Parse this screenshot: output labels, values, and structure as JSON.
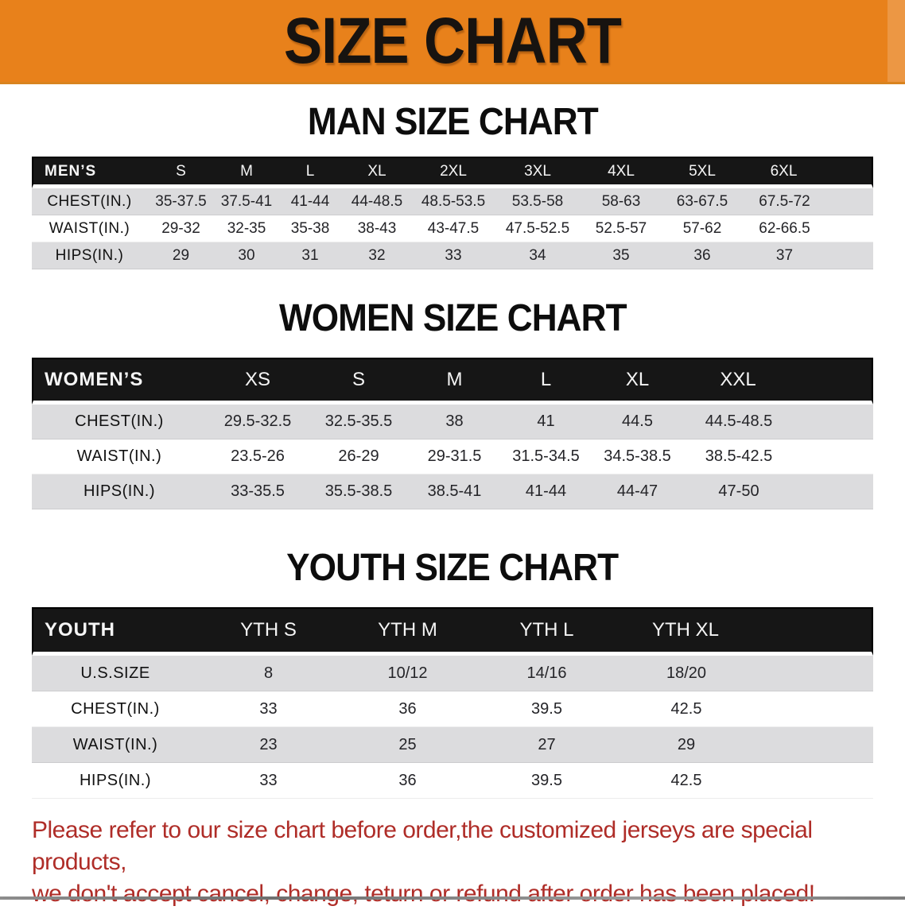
{
  "banner": {
    "title": "SIZE CHART",
    "background_color": "#E8811B"
  },
  "sections": {
    "men": {
      "heading": "MAN SIZE CHART"
    },
    "women": {
      "heading": "WOMEN SIZE CHART"
    },
    "youth": {
      "heading": "YOUTH SIZE CHART"
    }
  },
  "tables": {
    "men": {
      "columns": [
        "MEN’S",
        "S",
        "M",
        "L",
        "XL",
        "2XL",
        "3XL",
        "4XL",
        "5XL",
        "6XL"
      ],
      "rows": [
        {
          "label": "CHEST(IN.)",
          "values": [
            "35-37.5",
            "37.5-41",
            "41-44",
            "44-48.5",
            "48.5-53.5",
            "53.5-58",
            "58-63",
            "63-67.5",
            "67.5-72"
          ]
        },
        {
          "label": "WAIST(IN.)",
          "values": [
            "29-32",
            "32-35",
            "35-38",
            "38-43",
            "43-47.5",
            "47.5-52.5",
            "52.5-57",
            "57-62",
            "62-66.5"
          ]
        },
        {
          "label": "HIPS(IN.)",
          "values": [
            "29",
            "30",
            "31",
            "32",
            "33",
            "34",
            "35",
            "36",
            "37"
          ]
        }
      ]
    },
    "women": {
      "columns": [
        "WOMEN’S",
        "XS",
        "S",
        "M",
        "L",
        "XL",
        "XXL"
      ],
      "rows": [
        {
          "label": "CHEST(IN.)",
          "values": [
            "29.5-32.5",
            "32.5-35.5",
            "38",
            "41",
            "44.5",
            "44.5-48.5"
          ]
        },
        {
          "label": "WAIST(IN.)",
          "values": [
            "23.5-26",
            "26-29",
            "29-31.5",
            "31.5-34.5",
            "34.5-38.5",
            "38.5-42.5"
          ]
        },
        {
          "label": "HIPS(IN.)",
          "values": [
            "33-35.5",
            "35.5-38.5",
            "38.5-41",
            "41-44",
            "44-47",
            "47-50"
          ]
        }
      ]
    },
    "youth": {
      "columns": [
        "YOUTH",
        "YTH S",
        "YTH M",
        "YTH L",
        "YTH XL"
      ],
      "rows": [
        {
          "label": "U.S.SIZE",
          "values": [
            "8",
            "10/12",
            "14/16",
            "18/20"
          ]
        },
        {
          "label": "CHEST(IN.)",
          "values": [
            "33",
            "36",
            "39.5",
            "42.5"
          ]
        },
        {
          "label": "WAIST(IN.)",
          "values": [
            "23",
            "25",
            "27",
            "29"
          ]
        },
        {
          "label": "HIPS(IN.)",
          "values": [
            "33",
            "36",
            "39.5",
            "42.5"
          ]
        }
      ]
    }
  },
  "footer": {
    "line1": "Please refer to our size chart before order,the customized jerseys are special products,",
    "line2": "we don't accept cancel, change, teturn or refund after order has been placed!",
    "text_color": "#AF2D28"
  }
}
